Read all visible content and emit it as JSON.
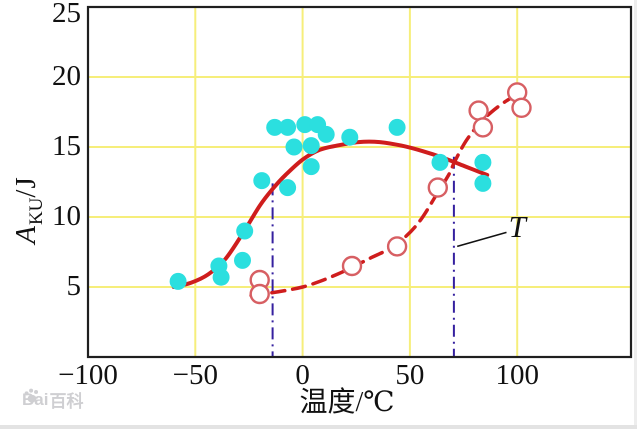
{
  "watermark": {
    "prefix": "Bai",
    "suffix": "百科"
  },
  "chart_data": {
    "type": "scatter",
    "title": "",
    "xlabel": "温度/℃",
    "ylabel": "AKU/J",
    "ylabel_parts": {
      "symbol": "A",
      "subscript": "KU",
      "unit": "/J"
    },
    "xlim": [
      -100,
      153
    ],
    "ylim": [
      0,
      25
    ],
    "xticks": [
      -100,
      -50,
      0,
      50,
      100
    ],
    "xtick_labels": [
      "−100",
      "−50",
      "0",
      "50",
      "100"
    ],
    "yticks": [
      5,
      10,
      15,
      20,
      25
    ],
    "ytick_labels": [
      "5",
      "10",
      "15",
      "20",
      "25"
    ],
    "grid": true,
    "legend": "none",
    "colors": {
      "grid": "#f6ee7b",
      "axis": "#1f1f1f",
      "filled_points": "#2bdfdf",
      "open_points": "#d75f63",
      "solid_curve": "#cf1d1d",
      "dashed_curve": "#cf1d1d",
      "reference_line": "#35209f",
      "annotation": "#111111"
    },
    "series": [
      {
        "name": "impact-energy-filled-points",
        "marker": "filled-circle",
        "color": "#2bdfdf",
        "points": [
          [
            -58,
            5.4
          ],
          [
            -39,
            6.5
          ],
          [
            -38,
            5.7
          ],
          [
            -28,
            6.9
          ],
          [
            -27,
            9.0
          ],
          [
            -19,
            12.6
          ],
          [
            -13,
            16.4
          ],
          [
            -7,
            16.4
          ],
          [
            -7,
            12.1
          ],
          [
            -4,
            15.0
          ],
          [
            1,
            16.6
          ],
          [
            4,
            15.1
          ],
          [
            4,
            13.6
          ],
          [
            7,
            16.6
          ],
          [
            11,
            15.9
          ],
          [
            22,
            15.7
          ],
          [
            44,
            16.4
          ],
          [
            64,
            13.9
          ],
          [
            84,
            13.9
          ],
          [
            84,
            12.4
          ]
        ]
      },
      {
        "name": "impact-energy-open-points",
        "marker": "open-circle",
        "color": "#d75f63",
        "points": [
          [
            -20,
            5.5
          ],
          [
            -20,
            4.5
          ],
          [
            23,
            6.5
          ],
          [
            44,
            7.9
          ],
          [
            63,
            12.1
          ],
          [
            82,
            17.6
          ],
          [
            84,
            16.4
          ],
          [
            100,
            18.9
          ],
          [
            102,
            17.8
          ]
        ]
      }
    ],
    "curves": [
      {
        "name": "solid-fit-curve",
        "style": "solid",
        "color": "#cf1d1d",
        "width": 4,
        "points": [
          [
            -60,
            5.0
          ],
          [
            -52,
            5.3
          ],
          [
            -44,
            5.9
          ],
          [
            -36,
            7.0
          ],
          [
            -28,
            8.8
          ],
          [
            -20,
            10.8
          ],
          [
            -14,
            12.0
          ],
          [
            -8,
            13.0
          ],
          [
            0,
            14.1
          ],
          [
            8,
            14.8
          ],
          [
            16,
            15.1
          ],
          [
            26,
            15.35
          ],
          [
            36,
            15.35
          ],
          [
            46,
            15.1
          ],
          [
            56,
            14.7
          ],
          [
            66,
            14.2
          ],
          [
            76,
            13.6
          ],
          [
            86,
            13.0
          ]
        ]
      },
      {
        "name": "dashed-fit-curve",
        "style": "dashed",
        "color": "#cf1d1d",
        "width": 3.5,
        "points": [
          [
            -24,
            4.4
          ],
          [
            -16,
            4.55
          ],
          [
            -8,
            4.75
          ],
          [
            0,
            5.0
          ],
          [
            8,
            5.4
          ],
          [
            16,
            5.9
          ],
          [
            23,
            6.4
          ],
          [
            32,
            7.1
          ],
          [
            40,
            7.7
          ],
          [
            48,
            8.6
          ],
          [
            55,
            9.8
          ],
          [
            62,
            11.5
          ],
          [
            68,
            13.0
          ],
          [
            71,
            14.0
          ],
          [
            76,
            15.4
          ],
          [
            82,
            16.6
          ],
          [
            88,
            17.5
          ],
          [
            95,
            18.3
          ],
          [
            101,
            18.8
          ]
        ]
      }
    ],
    "reference_lines": [
      {
        "name": "transition-line-left",
        "x": -14,
        "y_from": 0,
        "y_to": 12.4
      },
      {
        "name": "transition-line-right",
        "x": 70.5,
        "y_from": 0,
        "y_to": 14.3
      }
    ],
    "annotation": {
      "text": "T",
      "x": 100,
      "y": 9.3,
      "leader": [
        [
          72,
          7.9
        ],
        [
          95,
          8.9
        ]
      ]
    }
  }
}
